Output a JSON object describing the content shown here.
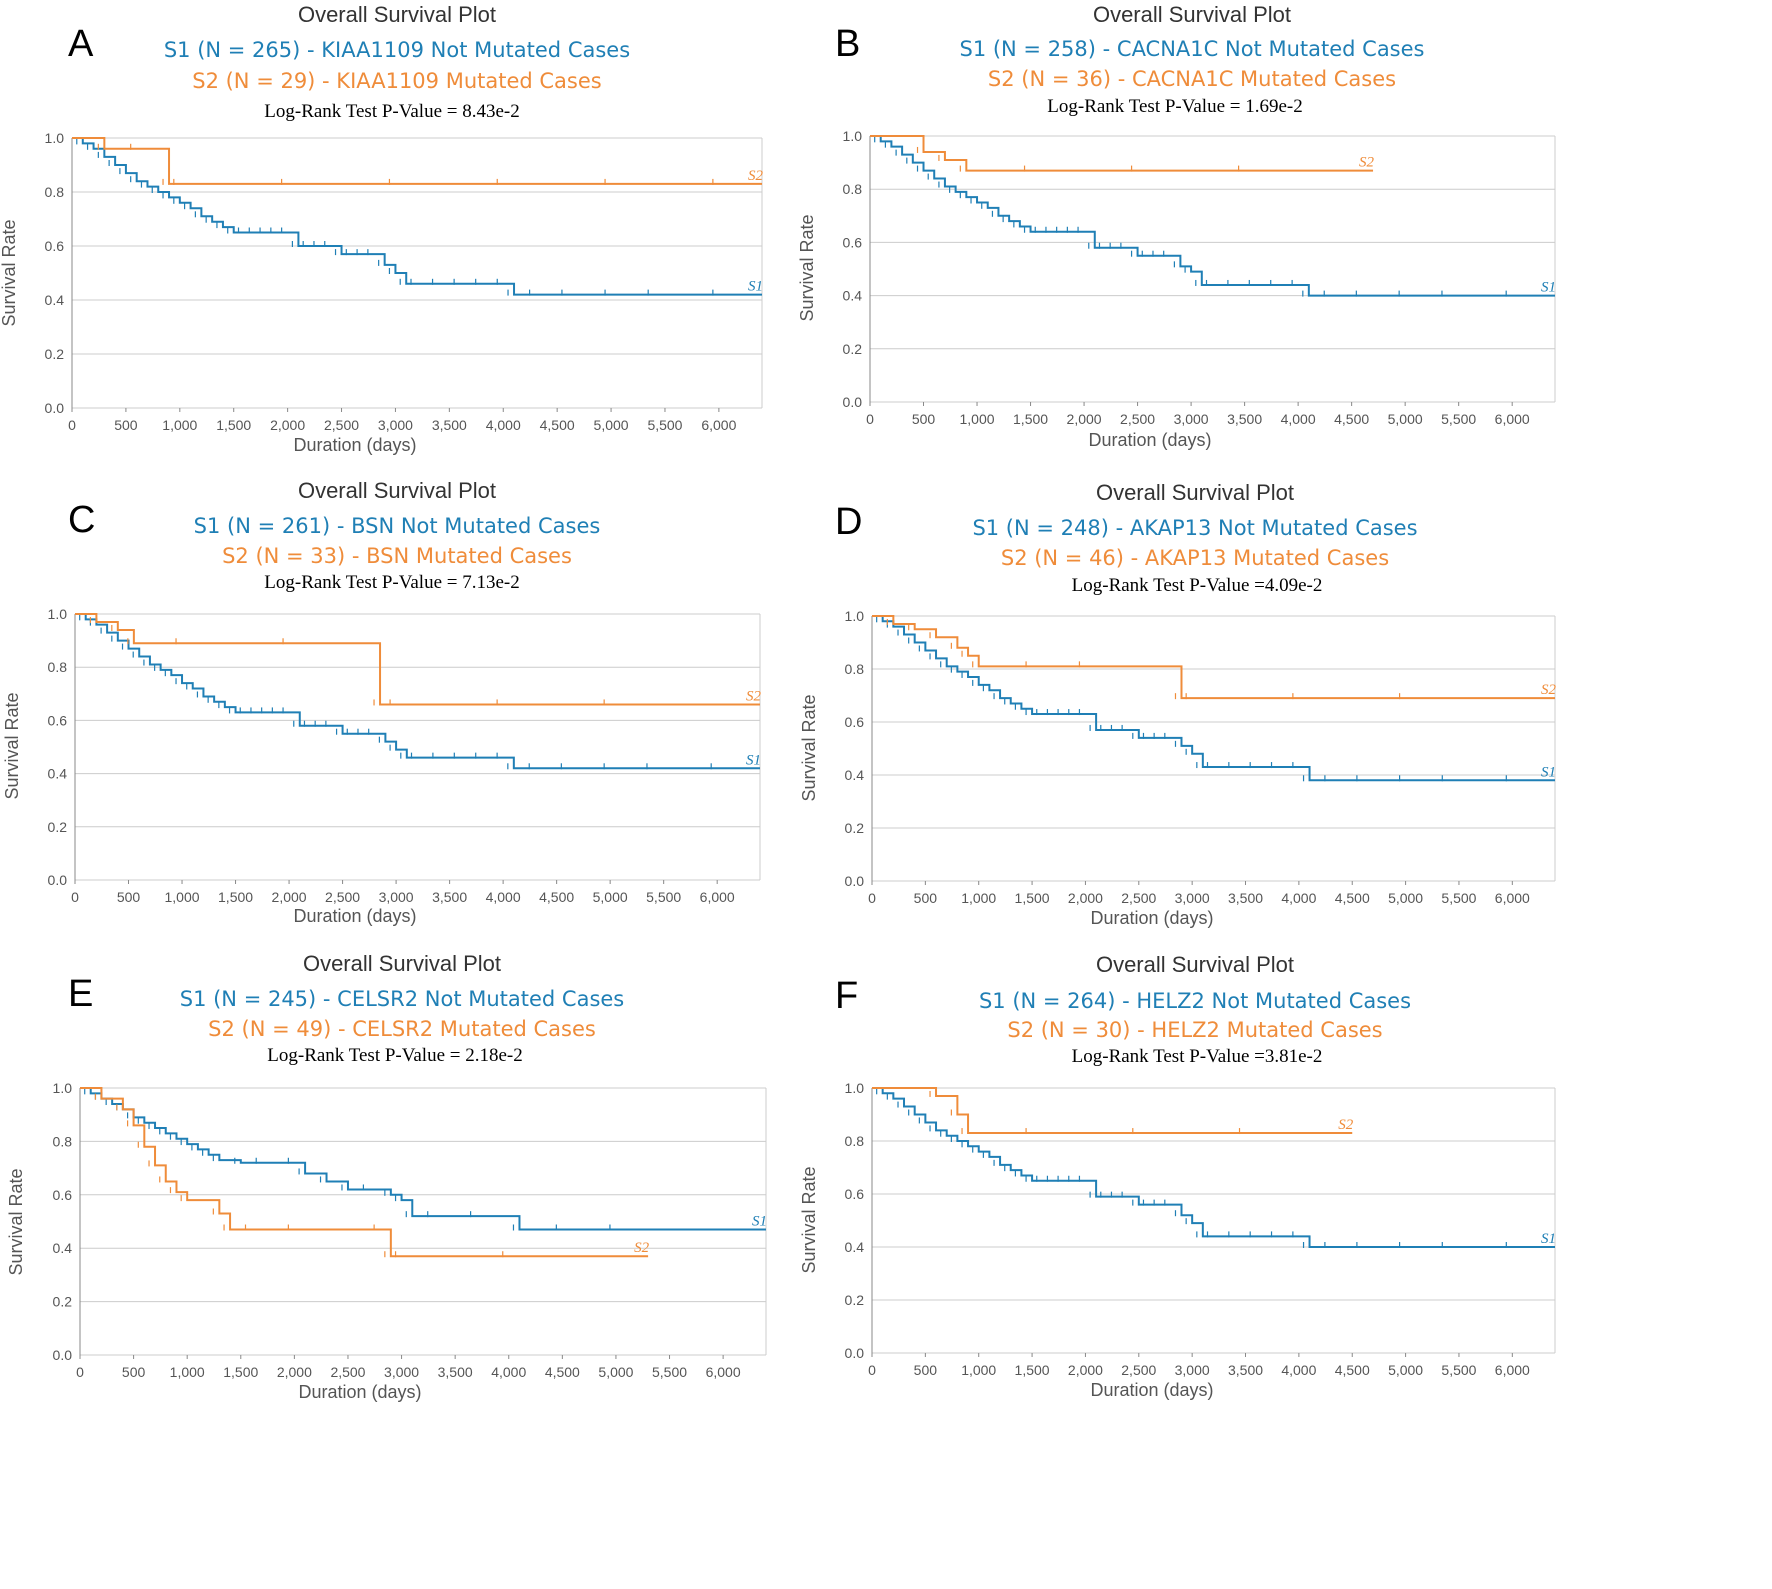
{
  "colors": {
    "s1": "#1f7fb5",
    "s2": "#ef8c3a",
    "grid": "#cccccc",
    "axis": "#888888"
  },
  "chart_data": [
    {
      "type": "line",
      "panel": "A",
      "title": "Overall Survival Plot",
      "s1_label": "S1 (N = 265) - KIAA1109 Not Mutated Cases",
      "s2_label": "S2 (N = 29) - KIAA1109 Mutated Cases",
      "pvalue": "Log-Rank Test P-Value = 8.43e-2",
      "xlabel": "Duration (days)",
      "ylabel": "Survival Rate",
      "xlim": [
        0,
        6400
      ],
      "ylim": [
        0,
        1.0
      ],
      "xticks": [
        "0",
        "500",
        "1,000",
        "1,500",
        "2,000",
        "2,500",
        "3,000",
        "3,500",
        "4,000",
        "4,500",
        "5,000",
        "5,500",
        "6,000"
      ],
      "yticks": [
        "0.0",
        "0.2",
        "0.4",
        "0.6",
        "0.8",
        "1.0"
      ],
      "end_labels": [
        "S1",
        "S2"
      ],
      "series": [
        {
          "name": "S1",
          "x": [
            0,
            100,
            200,
            300,
            400,
            500,
            600,
            700,
            800,
            900,
            1000,
            1100,
            1200,
            1300,
            1400,
            1500,
            1600,
            1700,
            1800,
            1900,
            2000,
            2100,
            2200,
            2300,
            2400,
            2500,
            2600,
            2700,
            2800,
            2900,
            3000,
            3100,
            3200,
            3400,
            3600,
            3800,
            4000,
            4100,
            4300,
            4600,
            5000,
            5400,
            6000,
            6400
          ],
          "y": [
            1.0,
            0.98,
            0.96,
            0.93,
            0.9,
            0.87,
            0.84,
            0.82,
            0.8,
            0.78,
            0.76,
            0.74,
            0.71,
            0.69,
            0.67,
            0.65,
            0.65,
            0.65,
            0.65,
            0.65,
            0.65,
            0.6,
            0.6,
            0.6,
            0.6,
            0.57,
            0.57,
            0.57,
            0.57,
            0.53,
            0.5,
            0.46,
            0.46,
            0.46,
            0.46,
            0.46,
            0.46,
            0.42,
            0.42,
            0.42,
            0.42,
            0.42,
            0.42,
            0.42
          ]
        },
        {
          "name": "S2",
          "x": [
            0,
            300,
            600,
            900,
            1000,
            2000,
            3000,
            4000,
            5000,
            6000,
            6400
          ],
          "y": [
            1.0,
            0.96,
            0.96,
            0.83,
            0.83,
            0.83,
            0.83,
            0.83,
            0.83,
            0.83,
            0.83
          ]
        }
      ]
    },
    {
      "type": "line",
      "panel": "B",
      "title": "Overall Survival Plot",
      "s1_label": "S1 (N = 258) - CACNA1C Not Mutated Cases",
      "s2_label": "S2 (N = 36) - CACNA1C Mutated Cases",
      "pvalue": "Log-Rank Test P-Value = 1.69e-2",
      "xlabel": "Duration (days)",
      "ylabel": "Survival Rate",
      "xlim": [
        0,
        6400
      ],
      "ylim": [
        0,
        1.0
      ],
      "xticks": [
        "0",
        "500",
        "1,000",
        "1,500",
        "2,000",
        "2,500",
        "3,000",
        "3,500",
        "4,000",
        "4,500",
        "5,000",
        "5,500",
        "6,000"
      ],
      "yticks": [
        "0.0",
        "0.2",
        "0.4",
        "0.6",
        "0.8",
        "1.0"
      ],
      "end_labels": [
        "S1",
        "S2"
      ],
      "series": [
        {
          "name": "S1",
          "x": [
            0,
            100,
            200,
            300,
            400,
            500,
            600,
            700,
            800,
            900,
            1000,
            1100,
            1200,
            1300,
            1400,
            1500,
            1600,
            1700,
            1800,
            1900,
            2000,
            2100,
            2200,
            2300,
            2400,
            2500,
            2600,
            2700,
            2800,
            2900,
            3000,
            3100,
            3200,
            3400,
            3600,
            3800,
            4000,
            4100,
            4300,
            4600,
            5000,
            5400,
            6000,
            6400
          ],
          "y": [
            1.0,
            0.98,
            0.96,
            0.93,
            0.9,
            0.87,
            0.84,
            0.81,
            0.79,
            0.77,
            0.75,
            0.73,
            0.7,
            0.68,
            0.66,
            0.64,
            0.64,
            0.64,
            0.64,
            0.64,
            0.64,
            0.58,
            0.58,
            0.58,
            0.58,
            0.55,
            0.55,
            0.55,
            0.55,
            0.51,
            0.49,
            0.44,
            0.44,
            0.44,
            0.44,
            0.44,
            0.44,
            0.4,
            0.4,
            0.4,
            0.4,
            0.4,
            0.4,
            0.4
          ]
        },
        {
          "name": "S2",
          "x": [
            0,
            500,
            700,
            900,
            1500,
            2500,
            3500,
            4700
          ],
          "y": [
            1.0,
            0.94,
            0.91,
            0.87,
            0.87,
            0.87,
            0.87,
            0.87
          ]
        }
      ]
    },
    {
      "type": "line",
      "panel": "C",
      "title": "Overall Survival Plot",
      "s1_label": "S1 (N = 261) - BSN Not Mutated Cases",
      "s2_label": "S2 (N = 33) - BSN Mutated Cases",
      "pvalue": "Log-Rank Test P-Value = 7.13e-2",
      "xlabel": "Duration (days)",
      "ylabel": "Survival Rate",
      "xlim": [
        0,
        6400
      ],
      "ylim": [
        0,
        1.0
      ],
      "xticks": [
        "0",
        "500",
        "1,000",
        "1,500",
        "2,000",
        "2,500",
        "3,000",
        "3,500",
        "4,000",
        "4,500",
        "5,000",
        "5,500",
        "6,000"
      ],
      "yticks": [
        "0.0",
        "0.2",
        "0.4",
        "0.6",
        "0.8",
        "1.0"
      ],
      "end_labels": [
        "S1",
        "S2"
      ],
      "series": [
        {
          "name": "S1",
          "x": [
            0,
            100,
            200,
            300,
            400,
            500,
            600,
            700,
            800,
            900,
            1000,
            1100,
            1200,
            1300,
            1400,
            1500,
            1600,
            1700,
            1800,
            1900,
            2000,
            2100,
            2200,
            2300,
            2400,
            2500,
            2600,
            2700,
            2800,
            2900,
            3000,
            3100,
            3200,
            3400,
            3600,
            3800,
            4000,
            4100,
            4300,
            4600,
            5000,
            5400,
            6000,
            6400
          ],
          "y": [
            1.0,
            0.98,
            0.96,
            0.93,
            0.9,
            0.87,
            0.84,
            0.81,
            0.79,
            0.77,
            0.74,
            0.72,
            0.69,
            0.67,
            0.65,
            0.63,
            0.63,
            0.63,
            0.63,
            0.63,
            0.63,
            0.58,
            0.58,
            0.58,
            0.58,
            0.55,
            0.55,
            0.55,
            0.55,
            0.52,
            0.49,
            0.46,
            0.46,
            0.46,
            0.46,
            0.46,
            0.46,
            0.42,
            0.42,
            0.42,
            0.42,
            0.42,
            0.42,
            0.42
          ]
        },
        {
          "name": "S2",
          "x": [
            0,
            200,
            400,
            550,
            1000,
            2000,
            2850,
            3000,
            4000,
            5000,
            6400
          ],
          "y": [
            1.0,
            0.97,
            0.94,
            0.89,
            0.89,
            0.89,
            0.66,
            0.66,
            0.66,
            0.66,
            0.66
          ]
        }
      ]
    },
    {
      "type": "line",
      "panel": "D",
      "title": "Overall Survival Plot",
      "s1_label": "S1 (N = 248) - AKAP13 Not Mutated Cases",
      "s2_label": "S2 (N = 46) - AKAP13 Mutated Cases",
      "pvalue": "Log-Rank Test P-Value =4.09e-2",
      "xlabel": "Duration (days)",
      "ylabel": "Survival Rate",
      "xlim": [
        0,
        6400
      ],
      "ylim": [
        0,
        1.0
      ],
      "xticks": [
        "0",
        "500",
        "1,000",
        "1,500",
        "2,000",
        "2,500",
        "3,000",
        "3,500",
        "4,000",
        "4,500",
        "5,000",
        "5,500",
        "6,000"
      ],
      "yticks": [
        "0.0",
        "0.2",
        "0.4",
        "0.6",
        "0.8",
        "1.0"
      ],
      "end_labels": [
        "S1",
        "S2"
      ],
      "series": [
        {
          "name": "S1",
          "x": [
            0,
            100,
            200,
            300,
            400,
            500,
            600,
            700,
            800,
            900,
            1000,
            1100,
            1200,
            1300,
            1400,
            1500,
            1600,
            1700,
            1800,
            1900,
            2000,
            2100,
            2200,
            2300,
            2400,
            2500,
            2600,
            2700,
            2800,
            2900,
            3000,
            3100,
            3200,
            3400,
            3600,
            3800,
            4000,
            4100,
            4300,
            4600,
            5000,
            5400,
            6000,
            6400
          ],
          "y": [
            1.0,
            0.98,
            0.96,
            0.93,
            0.9,
            0.87,
            0.84,
            0.81,
            0.79,
            0.77,
            0.74,
            0.72,
            0.69,
            0.67,
            0.65,
            0.63,
            0.63,
            0.63,
            0.63,
            0.63,
            0.63,
            0.57,
            0.57,
            0.57,
            0.57,
            0.54,
            0.54,
            0.54,
            0.54,
            0.51,
            0.48,
            0.43,
            0.43,
            0.43,
            0.43,
            0.43,
            0.43,
            0.38,
            0.38,
            0.38,
            0.38,
            0.38,
            0.38,
            0.38
          ]
        },
        {
          "name": "S2",
          "x": [
            0,
            200,
            400,
            600,
            800,
            900,
            1000,
            1500,
            2000,
            2900,
            3000,
            4000,
            5000,
            6400
          ],
          "y": [
            1.0,
            0.97,
            0.95,
            0.92,
            0.88,
            0.85,
            0.81,
            0.81,
            0.81,
            0.69,
            0.69,
            0.69,
            0.69,
            0.69
          ]
        }
      ]
    },
    {
      "type": "line",
      "panel": "E",
      "title": "Overall Survival Plot",
      "s1_label": "S1 (N = 245) - CELSR2 Not Mutated Cases",
      "s2_label": "S2 (N = 49) - CELSR2 Mutated Cases",
      "pvalue": "Log-Rank Test P-Value = 2.18e-2",
      "xlabel": "Duration (days)",
      "ylabel": "Survival Rate",
      "xlim": [
        0,
        6400
      ],
      "ylim": [
        0,
        1.0
      ],
      "xticks": [
        "0",
        "500",
        "1,000",
        "1,500",
        "2,000",
        "2,500",
        "3,000",
        "3,500",
        "4,000",
        "4,500",
        "5,000",
        "5,500",
        "6,000"
      ],
      "yticks": [
        "0.0",
        "0.2",
        "0.4",
        "0.6",
        "0.8",
        "1.0"
      ],
      "end_labels": [
        "S1",
        "S2"
      ],
      "series": [
        {
          "name": "S1",
          "x": [
            0,
            100,
            200,
            300,
            400,
            500,
            600,
            700,
            800,
            900,
            1000,
            1100,
            1200,
            1300,
            1500,
            1700,
            2000,
            2100,
            2300,
            2500,
            2700,
            2900,
            3000,
            3100,
            3300,
            3700,
            4100,
            4500,
            5000,
            6400
          ],
          "y": [
            1.0,
            0.98,
            0.96,
            0.94,
            0.92,
            0.89,
            0.87,
            0.85,
            0.83,
            0.81,
            0.79,
            0.77,
            0.75,
            0.73,
            0.72,
            0.72,
            0.72,
            0.68,
            0.65,
            0.62,
            0.62,
            0.6,
            0.58,
            0.52,
            0.52,
            0.52,
            0.47,
            0.47,
            0.47,
            0.47
          ]
        },
        {
          "name": "S2",
          "x": [
            0,
            200,
            400,
            500,
            600,
            700,
            800,
            900,
            1000,
            1300,
            1400,
            1600,
            2000,
            2800,
            2900,
            3000,
            4000,
            5300
          ],
          "y": [
            1.0,
            0.96,
            0.92,
            0.86,
            0.78,
            0.71,
            0.65,
            0.61,
            0.58,
            0.53,
            0.47,
            0.47,
            0.47,
            0.47,
            0.37,
            0.37,
            0.37,
            0.37
          ]
        }
      ]
    },
    {
      "type": "line",
      "panel": "F",
      "title": "Overall Survival Plot",
      "s1_label": "S1 (N = 264) - HELZ2 Not Mutated Cases",
      "s2_label": "S2 (N = 30) - HELZ2 Mutated Cases",
      "pvalue": "Log-Rank Test P-Value =3.81e-2",
      "xlabel": "Duration (days)",
      "ylabel": "Survival Rate",
      "xlim": [
        0,
        6400
      ],
      "ylim": [
        0,
        1.0
      ],
      "xticks": [
        "0",
        "500",
        "1,000",
        "1,500",
        "2,000",
        "2,500",
        "3,000",
        "3,500",
        "4,000",
        "4,500",
        "5,000",
        "5,500",
        "6,000"
      ],
      "yticks": [
        "0.0",
        "0.2",
        "0.4",
        "0.6",
        "0.8",
        "1.0"
      ],
      "end_labels": [
        "S1",
        "S2"
      ],
      "series": [
        {
          "name": "S1",
          "x": [
            0,
            100,
            200,
            300,
            400,
            500,
            600,
            700,
            800,
            900,
            1000,
            1100,
            1200,
            1300,
            1400,
            1500,
            1600,
            1700,
            1800,
            1900,
            2000,
            2100,
            2200,
            2300,
            2400,
            2500,
            2600,
            2700,
            2800,
            2900,
            3000,
            3100,
            3200,
            3400,
            3600,
            3800,
            4000,
            4100,
            4300,
            4600,
            5000,
            5400,
            6000,
            6400
          ],
          "y": [
            1.0,
            0.98,
            0.96,
            0.93,
            0.9,
            0.87,
            0.84,
            0.82,
            0.8,
            0.78,
            0.76,
            0.74,
            0.71,
            0.69,
            0.67,
            0.65,
            0.65,
            0.65,
            0.65,
            0.65,
            0.65,
            0.59,
            0.59,
            0.59,
            0.59,
            0.56,
            0.56,
            0.56,
            0.56,
            0.52,
            0.49,
            0.44,
            0.44,
            0.44,
            0.44,
            0.44,
            0.44,
            0.4,
            0.4,
            0.4,
            0.4,
            0.4,
            0.4,
            0.4
          ]
        },
        {
          "name": "S2",
          "x": [
            0,
            600,
            800,
            900,
            1500,
            2500,
            3500,
            4500
          ],
          "y": [
            1.0,
            0.97,
            0.9,
            0.83,
            0.83,
            0.83,
            0.83,
            0.83
          ]
        }
      ]
    }
  ]
}
